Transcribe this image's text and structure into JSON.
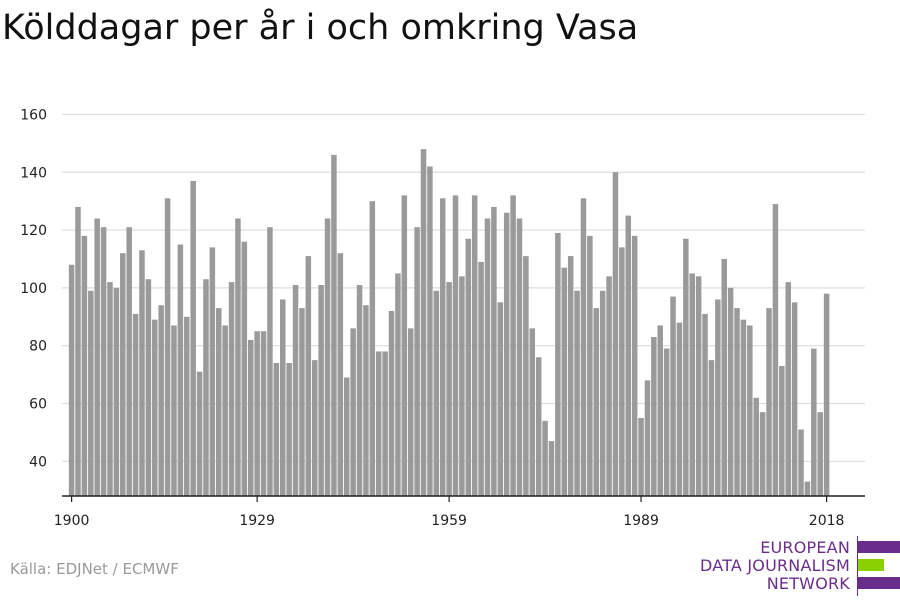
{
  "title": "Kölddagar per år i och omkring Vasa",
  "source": "Källa: EDJNet / ECMWF",
  "logo": {
    "lines": [
      "EUROPEAN",
      "DATA JOURNALISM",
      "NETWORK"
    ]
  },
  "colors": {
    "bar": "#9a9a9a",
    "grid": "#dddddd",
    "axis": "#222222",
    "logo_purple": "#6b2d8c",
    "logo_green": "#8bd000"
  },
  "chart_data": {
    "type": "bar",
    "title": "Kölddagar per år i och omkring Vasa",
    "xlabel": "",
    "ylabel": "",
    "ylim": [
      28,
      165
    ],
    "xlim": [
      1898.5,
      2024
    ],
    "grid": true,
    "y_ticks": [
      40,
      60,
      80,
      100,
      120,
      140,
      160
    ],
    "x_ticks": [
      1900,
      1929,
      1959,
      1989,
      2018
    ],
    "x_start": 1900,
    "values": [
      108,
      128,
      118,
      99,
      124,
      121,
      102,
      100,
      112,
      121,
      91,
      113,
      103,
      89,
      94,
      131,
      87,
      115,
      90,
      137,
      71,
      103,
      114,
      93,
      87,
      102,
      124,
      116,
      82,
      85,
      85,
      121,
      74,
      96,
      74,
      101,
      93,
      111,
      75,
      101,
      124,
      146,
      112,
      69,
      86,
      101,
      94,
      130,
      78,
      78,
      92,
      105,
      132,
      86,
      121,
      148,
      142,
      99,
      131,
      102,
      132,
      104,
      117,
      132,
      109,
      124,
      128,
      95,
      126,
      132,
      124,
      111,
      86,
      76,
      54,
      47,
      119,
      107,
      111,
      99,
      131,
      118,
      93,
      99,
      104,
      140,
      114,
      125,
      118,
      55,
      68,
      83,
      87,
      79,
      97,
      88,
      117,
      105,
      104,
      91,
      75,
      96,
      110,
      100,
      93,
      89,
      87,
      62,
      57,
      93,
      129,
      73,
      102,
      95,
      51,
      33,
      79,
      57,
      98
    ]
  }
}
